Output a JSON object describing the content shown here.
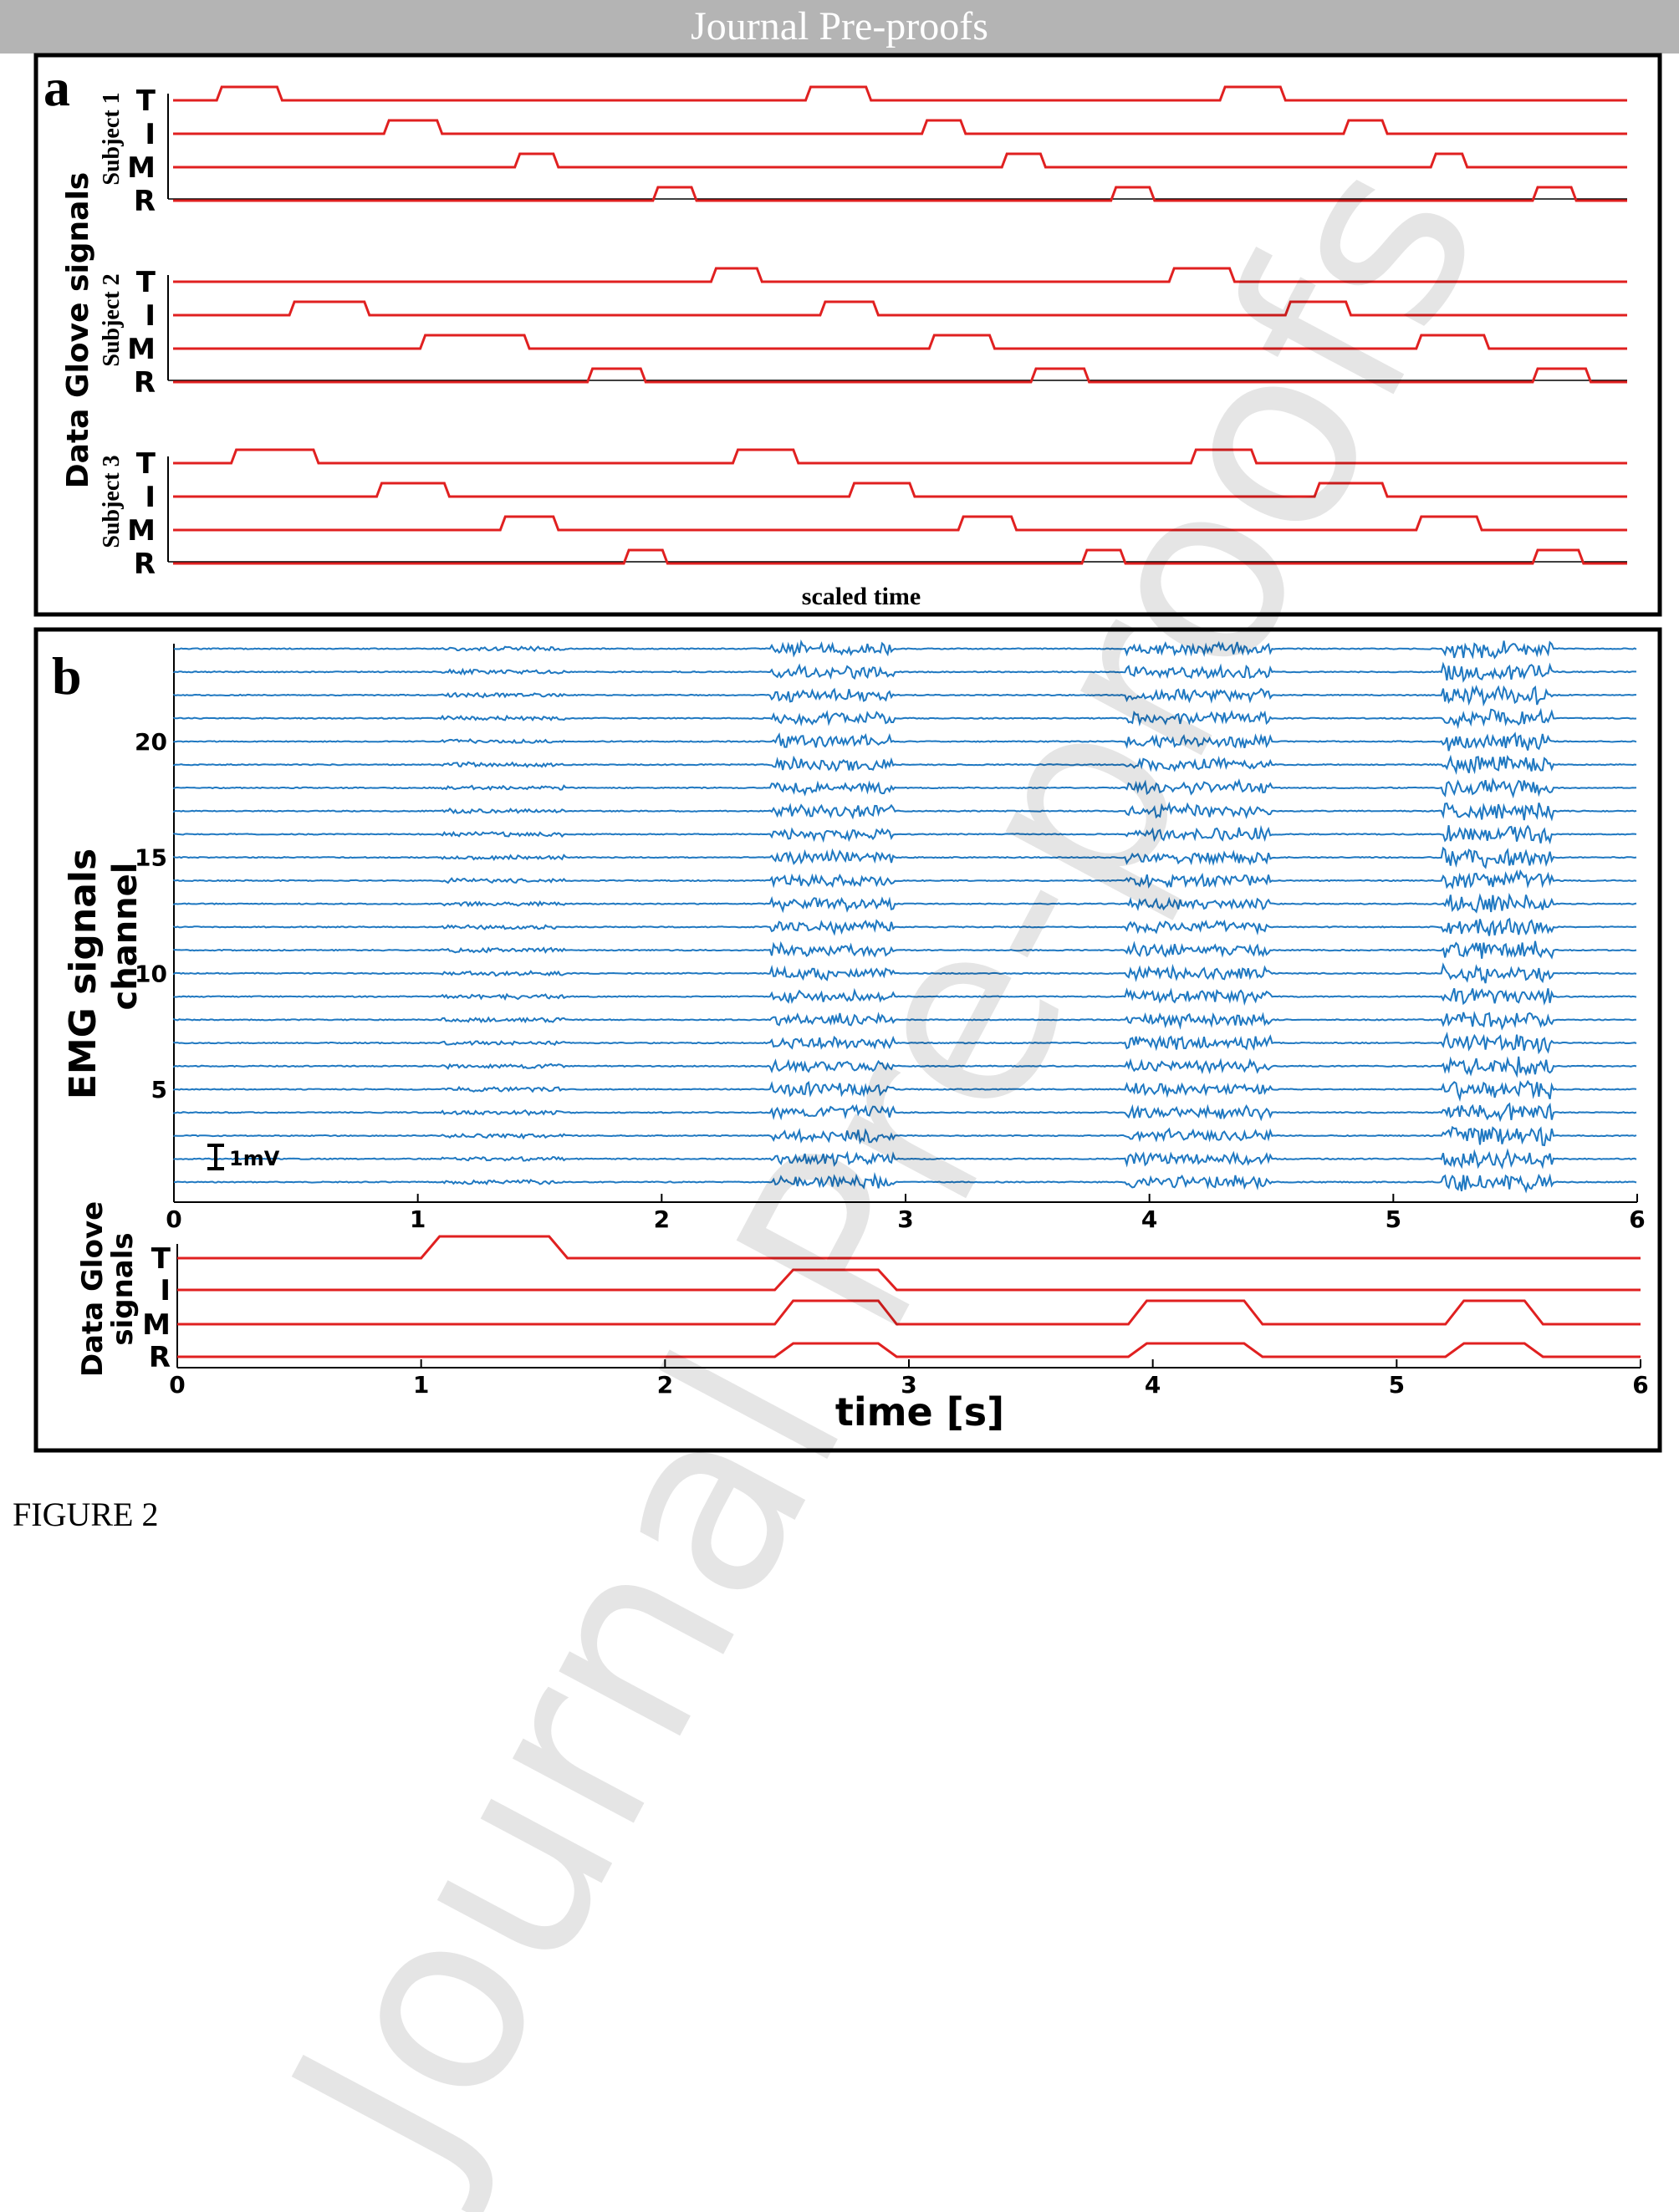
{
  "header": {
    "banner": "Journal Pre-proofs"
  },
  "watermark": "Journal Pre-proofs",
  "caption": "FIGURE 2",
  "colors": {
    "glove": "#e02020",
    "emg": "#1f78c1",
    "frame": "#000000",
    "banner": "#b4b4b4"
  },
  "chart_data": [
    {
      "panel": "a",
      "type": "line",
      "title": "",
      "ylabel": "Data Glove signals",
      "xlabel": "scaled time",
      "fingers": [
        "T",
        "I",
        "M",
        "R"
      ],
      "subjects": [
        {
          "name": "Subject 1",
          "series": [
            {
              "finger": "T",
              "flex_intervals": [
                [
                  0.03,
                  0.075
                ],
                [
                  0.435,
                  0.48
                ],
                [
                  0.72,
                  0.765
                ]
              ]
            },
            {
              "finger": "I",
              "flex_intervals": [
                [
                  0.145,
                  0.185
                ],
                [
                  0.515,
                  0.545
                ],
                [
                  0.805,
                  0.835
                ]
              ]
            },
            {
              "finger": "M",
              "flex_intervals": [
                [
                  0.235,
                  0.265
                ],
                [
                  0.57,
                  0.6
                ],
                [
                  0.865,
                  0.89
                ]
              ]
            },
            {
              "finger": "R",
              "flex_intervals": [
                [
                  0.33,
                  0.36
                ],
                [
                  0.645,
                  0.675
                ],
                [
                  0.935,
                  0.965
                ]
              ]
            }
          ]
        },
        {
          "name": "Subject 2",
          "series": [
            {
              "finger": "T",
              "flex_intervals": [
                [
                  0.37,
                  0.405
                ],
                [
                  0.685,
                  0.73
                ]
              ]
            },
            {
              "finger": "I",
              "flex_intervals": [
                [
                  0.08,
                  0.135
                ],
                [
                  0.445,
                  0.485
                ],
                [
                  0.765,
                  0.81
                ]
              ]
            },
            {
              "finger": "M",
              "flex_intervals": [
                [
                  0.17,
                  0.245
                ],
                [
                  0.52,
                  0.565
                ],
                [
                  0.855,
                  0.905
                ]
              ]
            },
            {
              "finger": "R",
              "flex_intervals": [
                [
                  0.285,
                  0.325
                ],
                [
                  0.59,
                  0.63
                ],
                [
                  0.935,
                  0.975
                ]
              ]
            }
          ]
        },
        {
          "name": "Subject 3",
          "series": [
            {
              "finger": "T",
              "flex_intervals": [
                [
                  0.04,
                  0.1
                ],
                [
                  0.385,
                  0.43
                ],
                [
                  0.7,
                  0.745
                ]
              ]
            },
            {
              "finger": "I",
              "flex_intervals": [
                [
                  0.14,
                  0.19
                ],
                [
                  0.465,
                  0.51
                ],
                [
                  0.785,
                  0.835
                ]
              ]
            },
            {
              "finger": "M",
              "flex_intervals": [
                [
                  0.225,
                  0.265
                ],
                [
                  0.54,
                  0.58
                ],
                [
                  0.855,
                  0.9
                ]
              ]
            },
            {
              "finger": "R",
              "flex_intervals": [
                [
                  0.31,
                  0.34
                ],
                [
                  0.625,
                  0.655
                ],
                [
                  0.935,
                  0.97
                ]
              ]
            }
          ]
        }
      ]
    },
    {
      "panel": "b",
      "type": "line",
      "ylabel": "EMG signals channel",
      "xlabel": "time [s]",
      "xlim": [
        0,
        6
      ],
      "xticks": [
        "0",
        "1",
        "2",
        "3",
        "4",
        "5",
        "6"
      ],
      "channels": 24,
      "yticks": [
        {
          "label": "5",
          "channel": 5
        },
        {
          "label": "10",
          "channel": 10
        },
        {
          "label": "15",
          "channel": 15
        },
        {
          "label": "20",
          "channel": 20
        }
      ],
      "scale_bar": "1mV",
      "emg_bursts_s": [
        [
          1.1,
          1.6
        ],
        [
          2.45,
          2.95
        ],
        [
          3.9,
          4.5
        ],
        [
          5.2,
          5.65
        ]
      ]
    },
    {
      "panel": "b-glove",
      "type": "line",
      "ylabel": "Data Glove signals",
      "xlabel": "time [s]",
      "xlim": [
        0,
        6
      ],
      "xticks": [
        "0",
        "1",
        "2",
        "3",
        "4",
        "5",
        "6"
      ],
      "series": [
        {
          "finger": "T",
          "flex_intervals_s": [
            [
              1.0,
              1.6
            ]
          ]
        },
        {
          "finger": "I",
          "flex_intervals_s": [
            [
              2.45,
              2.95
            ]
          ]
        },
        {
          "finger": "M",
          "flex_intervals_s": [
            [
              2.45,
              2.95
            ],
            [
              3.9,
              4.45
            ],
            [
              5.2,
              5.6
            ]
          ]
        },
        {
          "finger": "R",
          "flex_intervals_s": [
            [
              2.45,
              2.95
            ],
            [
              3.9,
              4.45
            ],
            [
              5.2,
              5.6
            ]
          ]
        }
      ]
    }
  ]
}
